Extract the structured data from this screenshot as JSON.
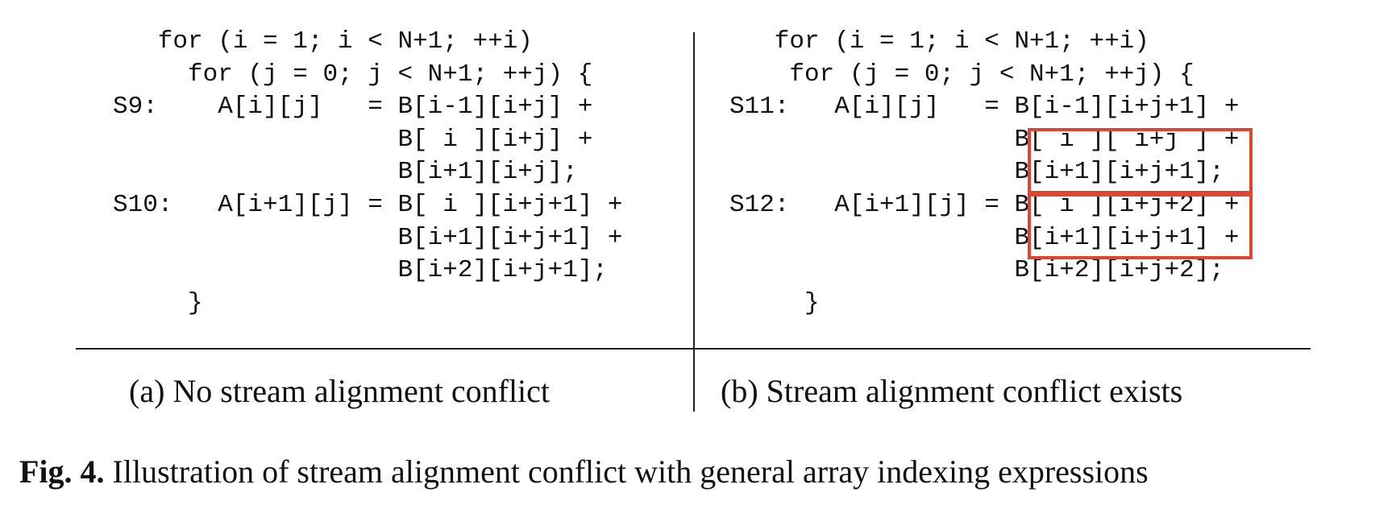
{
  "panel_a": {
    "code_lines": [
      "   for (i = 1; i < N+1; ++i)",
      "     for (j = 0; j < N+1; ++j) {",
      "S9:    A[i][j]   = B[i-1][i+j] +",
      "                   B[ i ][i+j] +",
      "                   B[i+1][i+j];",
      "S10:   A[i+1][j] = B[ i ][i+j+1] +",
      "                   B[i+1][i+j+1] +",
      "                   B[i+2][i+j+1];",
      "     }"
    ],
    "caption": "(a) No stream alignment conflict"
  },
  "panel_b": {
    "code_lines": [
      "   for (i = 1; i < N+1; ++i)",
      "    for (j = 0; j < N+1; ++j) {",
      "S11:   A[i][j]   = B[i-1][i+j+1] +",
      "                   B[ i ][ i+j ] +",
      "                   B[i+1][i+j+1];",
      "S12:   A[i+1][j] = B[ i ][i+j+2] +",
      "                   B[i+1][i+j+1] +",
      "                   B[i+2][i+j+2];",
      "     }"
    ],
    "caption": "(b) Stream alignment conflict exists"
  },
  "figure_caption": {
    "label": "Fig. 4.",
    "text": " Illustration of stream alignment conflict with general array indexing expressions"
  },
  "colors": {
    "highlight": "#e2452e",
    "text": "#111111"
  }
}
